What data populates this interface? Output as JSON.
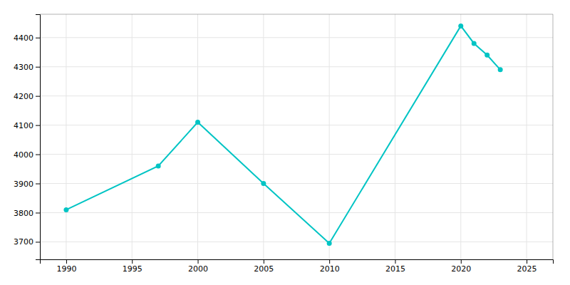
{
  "chart_data": {
    "type": "line",
    "x": [
      1990,
      1997,
      2000,
      2005,
      2010,
      2020,
      2021,
      2022,
      2023
    ],
    "values": [
      3810,
      3960,
      4110,
      3900,
      3695,
      4440,
      4380,
      4340,
      4290
    ],
    "color": "#00C4C4",
    "marker": "circle",
    "xlim": [
      1988,
      2027
    ],
    "ylim": [
      3640,
      4480
    ],
    "xticks": [
      1990,
      1995,
      2000,
      2005,
      2010,
      2015,
      2020,
      2025
    ],
    "yticks": [
      3700,
      3800,
      3900,
      4000,
      4100,
      4200,
      4300,
      4400
    ],
    "grid": true
  }
}
